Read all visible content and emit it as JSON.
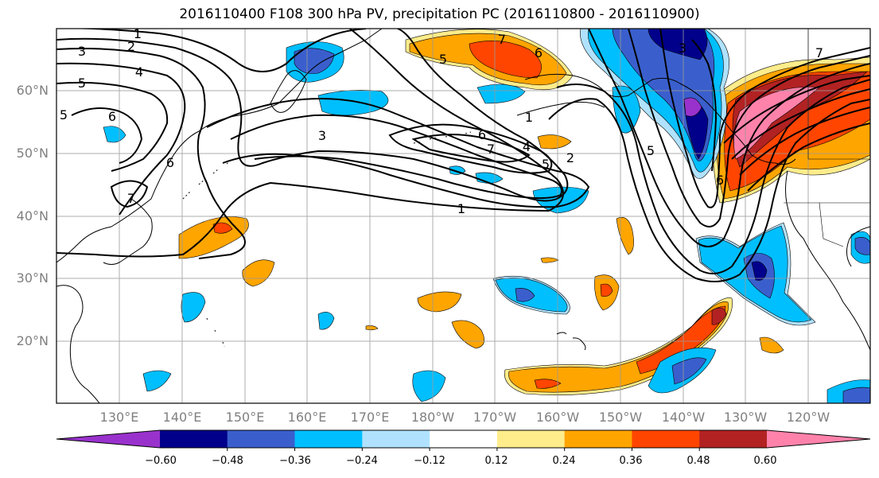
{
  "title": "2016110400 F108 300 hPa PV, precipitation PC (2016110800 - 2016110900)",
  "map": {
    "lat_labels": [
      "60°N",
      "50°N",
      "40°N",
      "30°N",
      "20°N"
    ],
    "lon_labels": [
      "130°E",
      "140°E",
      "150°E",
      "160°E",
      "170°E",
      "180°W",
      "170°W",
      "160°W",
      "150°W",
      "140°W",
      "130°W",
      "120°W"
    ],
    "contour_labels": [
      "1",
      "2",
      "3",
      "4",
      "5",
      "6",
      "7"
    ],
    "gridlines": true
  },
  "colorbar": {
    "tick_labels": [
      "−0.60",
      "−0.48",
      "−0.36",
      "−0.24",
      "−0.12",
      "0.12",
      "0.24",
      "0.36",
      "0.48",
      "0.60"
    ],
    "colors": [
      "#9932CC",
      "#00008B",
      "#3A5FCD",
      "#00BFFF",
      "#B0E2FF",
      "#FFFFFF",
      "#FFEC8B",
      "#FFA500",
      "#FF4500",
      "#B22222",
      "#FF82AB"
    ]
  }
}
